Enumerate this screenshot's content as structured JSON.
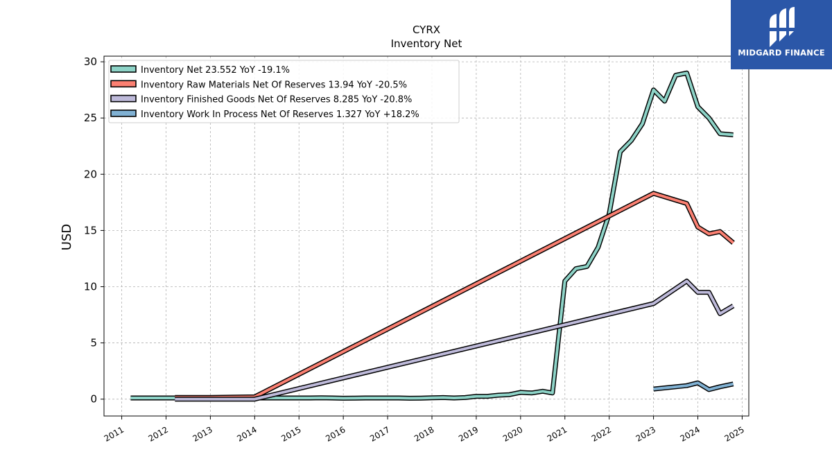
{
  "brand": {
    "name": "MIDGARD FINANCE",
    "bg_color": "#2b57a8"
  },
  "chart_data": {
    "type": "line",
    "title": "CYRX",
    "subtitle": "Inventory Net",
    "xlabel": "",
    "ylabel": "USD",
    "xlim": [
      2010.6,
      2025.15
    ],
    "ylim": [
      -1.5,
      30.5
    ],
    "x_ticks": [
      "2011",
      "2012",
      "2013",
      "2014",
      "2015",
      "2016",
      "2017",
      "2018",
      "2019",
      "2020",
      "2021",
      "2022",
      "2023",
      "2024",
      "2025"
    ],
    "y_ticks": [
      0,
      5,
      10,
      15,
      20,
      25,
      30
    ],
    "grid": true,
    "legend_position": "top-left",
    "series": [
      {
        "name": "Inventory Net  23.552 YoY -19.1%",
        "color": "#8dd3c7",
        "points": [
          [
            2011.2,
            0.1
          ],
          [
            2011.5,
            0.1
          ],
          [
            2011.75,
            0.1
          ],
          [
            2012.0,
            0.1
          ],
          [
            2012.25,
            0.1
          ],
          [
            2012.5,
            0.1
          ],
          [
            2012.75,
            0.1
          ],
          [
            2013.0,
            0.1
          ],
          [
            2013.25,
            0.1
          ],
          [
            2013.5,
            0.1
          ],
          [
            2013.75,
            0.1
          ],
          [
            2014.0,
            0.1
          ],
          [
            2014.25,
            0.1
          ],
          [
            2014.5,
            0.1
          ],
          [
            2014.75,
            0.1
          ],
          [
            2015.0,
            0.1
          ],
          [
            2015.25,
            0.1
          ],
          [
            2015.5,
            0.12
          ],
          [
            2015.75,
            0.1
          ],
          [
            2016.0,
            0.08
          ],
          [
            2016.25,
            0.09
          ],
          [
            2016.5,
            0.1
          ],
          [
            2016.75,
            0.1
          ],
          [
            2017.0,
            0.1
          ],
          [
            2017.25,
            0.1
          ],
          [
            2017.5,
            0.08
          ],
          [
            2017.75,
            0.09
          ],
          [
            2018.0,
            0.12
          ],
          [
            2018.25,
            0.14
          ],
          [
            2018.5,
            0.1
          ],
          [
            2018.75,
            0.14
          ],
          [
            2019.0,
            0.25
          ],
          [
            2019.25,
            0.25
          ],
          [
            2019.5,
            0.35
          ],
          [
            2019.75,
            0.4
          ],
          [
            2020.0,
            0.6
          ],
          [
            2020.25,
            0.55
          ],
          [
            2020.5,
            0.7
          ],
          [
            2020.72,
            0.55
          ],
          [
            2021.0,
            10.5
          ],
          [
            2021.25,
            11.6
          ],
          [
            2021.5,
            11.8
          ],
          [
            2021.75,
            13.5
          ],
          [
            2022.0,
            16.5
          ],
          [
            2022.25,
            22.0
          ],
          [
            2022.5,
            23.0
          ],
          [
            2022.75,
            24.5
          ],
          [
            2023.0,
            27.5
          ],
          [
            2023.25,
            26.5
          ],
          [
            2023.5,
            28.8
          ],
          [
            2023.75,
            29.0
          ],
          [
            2024.0,
            26.0
          ],
          [
            2024.25,
            25.0
          ],
          [
            2024.5,
            23.6
          ],
          [
            2024.8,
            23.5
          ]
        ]
      },
      {
        "name": "Inventory Raw Materials Net Of Reserves  13.94 YoY -20.5%",
        "color": "#fb8072",
        "points": [
          [
            2012.2,
            0.15
          ],
          [
            2013.0,
            0.15
          ],
          [
            2014.0,
            0.2
          ],
          [
            2023.0,
            18.3
          ],
          [
            2023.75,
            17.4
          ],
          [
            2024.0,
            15.3
          ],
          [
            2024.25,
            14.7
          ],
          [
            2024.5,
            14.9
          ],
          [
            2024.8,
            13.9
          ]
        ]
      },
      {
        "name": "Inventory Finished Goods Net Of Reserves  8.285 YoY -20.8%",
        "color": "#bebada",
        "points": [
          [
            2012.2,
            0.0
          ],
          [
            2014.0,
            0.0
          ],
          [
            2023.0,
            8.5
          ],
          [
            2023.75,
            10.5
          ],
          [
            2024.0,
            9.5
          ],
          [
            2024.25,
            9.5
          ],
          [
            2024.5,
            7.6
          ],
          [
            2024.8,
            8.3
          ]
        ]
      },
      {
        "name": "Inventory Work In Process Net Of Reserves  1.327 YoY +18.2%",
        "color": "#80b1d3",
        "points": [
          [
            2023.0,
            0.9
          ],
          [
            2023.75,
            1.2
          ],
          [
            2024.0,
            1.45
          ],
          [
            2024.25,
            0.85
          ],
          [
            2024.5,
            1.1
          ],
          [
            2024.8,
            1.35
          ]
        ]
      }
    ]
  }
}
